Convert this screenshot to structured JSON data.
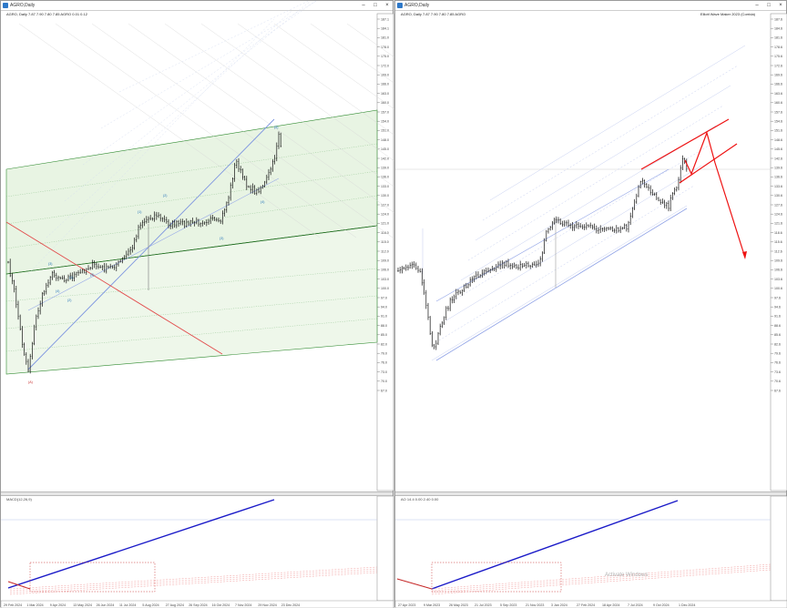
{
  "left_window": {
    "title": "AGRO,Daily",
    "info": "AGRO, Daily 7.87 7.90 7.80 7.85 AGRO 0.01 0.12",
    "indicator_label": "MACD(12,26,9)",
    "price_ticks": [
      "187.1",
      "184.1",
      "181.0",
      "178.0",
      "175.0",
      "172.0",
      "169.0",
      "166.0",
      "163.0",
      "160.0",
      "157.0",
      "154.0",
      "151.0",
      "148.0",
      "145.0",
      "142.0",
      "139.0",
      "136.0",
      "133.0",
      "130.0",
      "127.0",
      "124.0",
      "121.0",
      "118.0",
      "115.0",
      "112.0",
      "109.0",
      "106.0",
      "103.0",
      "100.0",
      "97.0",
      "94.0",
      "91.0",
      "88.0",
      "85.0",
      "82.0",
      "79.0",
      "76.0",
      "73.0",
      "70.0",
      "67.0"
    ],
    "date_ticks": [
      "29 Feb 2024",
      "1 Mar 2024",
      "9 Apr 2024",
      "13 May 2024",
      "26 Jun 2024",
      "11 Jul 2024",
      "5 Aug 2024",
      "27 Aug 2024",
      "26 Sep 2024",
      "16 Oct 2024",
      "7 Nov 2024",
      "29 Nov 2024",
      "23 Dec 2024"
    ],
    "wave_labels": [
      {
        "text": "(3)",
        "color": "#1e6fb8"
      },
      {
        "text": "(4)",
        "color": "#1e6fb8"
      },
      {
        "text": "(1)",
        "color": "#1e6fb8"
      },
      {
        "text": "(2)",
        "color": "#1e6fb8"
      },
      {
        "text": "(5)",
        "color": "#1e6fb8"
      },
      {
        "text": "(1)",
        "color": "#1e6fb8"
      },
      {
        "text": "(2)",
        "color": "#1e6fb8"
      },
      {
        "text": "(3)",
        "color": "#1e6fb8"
      },
      {
        "text": "(4)",
        "color": "#1e6fb8"
      },
      {
        "text": "(5)",
        "color": "#1e6fb8"
      },
      {
        "text": "(A)",
        "color": "#c62828"
      }
    ]
  },
  "right_window": {
    "title": "AGRO,Daily",
    "info": "AGRO, Daily 7.87 7.90 7.80 7.85 AGRO",
    "info_right": "Elliott Wave Maker 2023 (Corrida)",
    "indicator_label": "AO 14.4 0.00 2.40 0.00",
    "price_ticks": [
      "187.6",
      "184.6",
      "181.6",
      "178.6",
      "175.6",
      "172.6",
      "169.6",
      "166.6",
      "163.6",
      "160.6",
      "157.6",
      "154.6",
      "151.6",
      "148.6",
      "145.6",
      "142.6",
      "139.6",
      "136.6",
      "133.6",
      "130.6",
      "127.6",
      "124.6",
      "121.6",
      "118.6",
      "115.6",
      "112.6",
      "109.6",
      "106.6",
      "103.6",
      "100.6",
      "97.6",
      "94.6",
      "91.6",
      "88.6",
      "85.6",
      "82.6",
      "79.6",
      "76.6",
      "73.6",
      "70.6",
      "67.6"
    ],
    "date_ticks": [
      "27 Apr 2023",
      "9 Mar 2023",
      "26 May 2023",
      "21 Jul 2023",
      "5 Sep 2023",
      "21 Nov 2023",
      "3 Jan 2024",
      "27 Feb 2024",
      "18 Apr 2024",
      "7 Jul 2024",
      "9 Oct 2024",
      "1 Dec 2024"
    ],
    "watermark": "Activate Windows"
  }
}
